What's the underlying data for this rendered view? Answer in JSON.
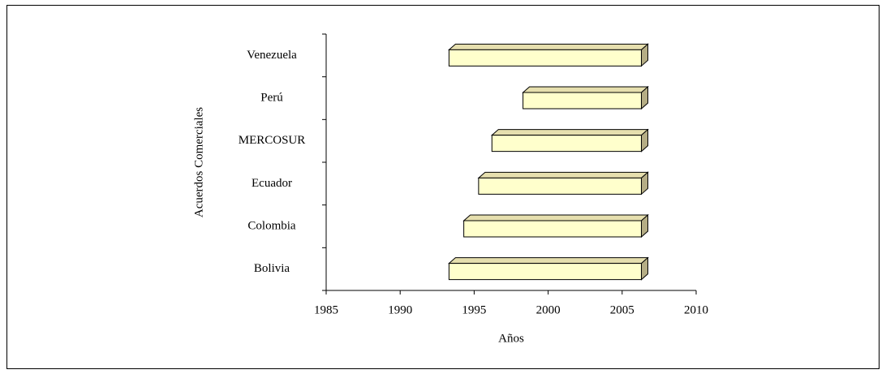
{
  "chart_data": {
    "type": "floating-bar",
    "ylabel": "Acuerdos Comerciales",
    "xlabel": "Años",
    "categories": [
      "Venezuela",
      "Perú",
      "MERCOSUR",
      "Ecuador",
      "Colombia",
      "Bolivia"
    ],
    "starts": [
      1993.3,
      1998.3,
      1996.2,
      1995.3,
      1994.3,
      1993.3
    ],
    "ends": [
      2006.3,
      2006.3,
      2006.3,
      2006.3,
      2006.3,
      2006.3
    ],
    "color": "#ffffcc",
    "xlim": [
      1985,
      2010
    ],
    "xticks": [
      1985,
      1990,
      1995,
      2000,
      2005,
      2010
    ]
  }
}
